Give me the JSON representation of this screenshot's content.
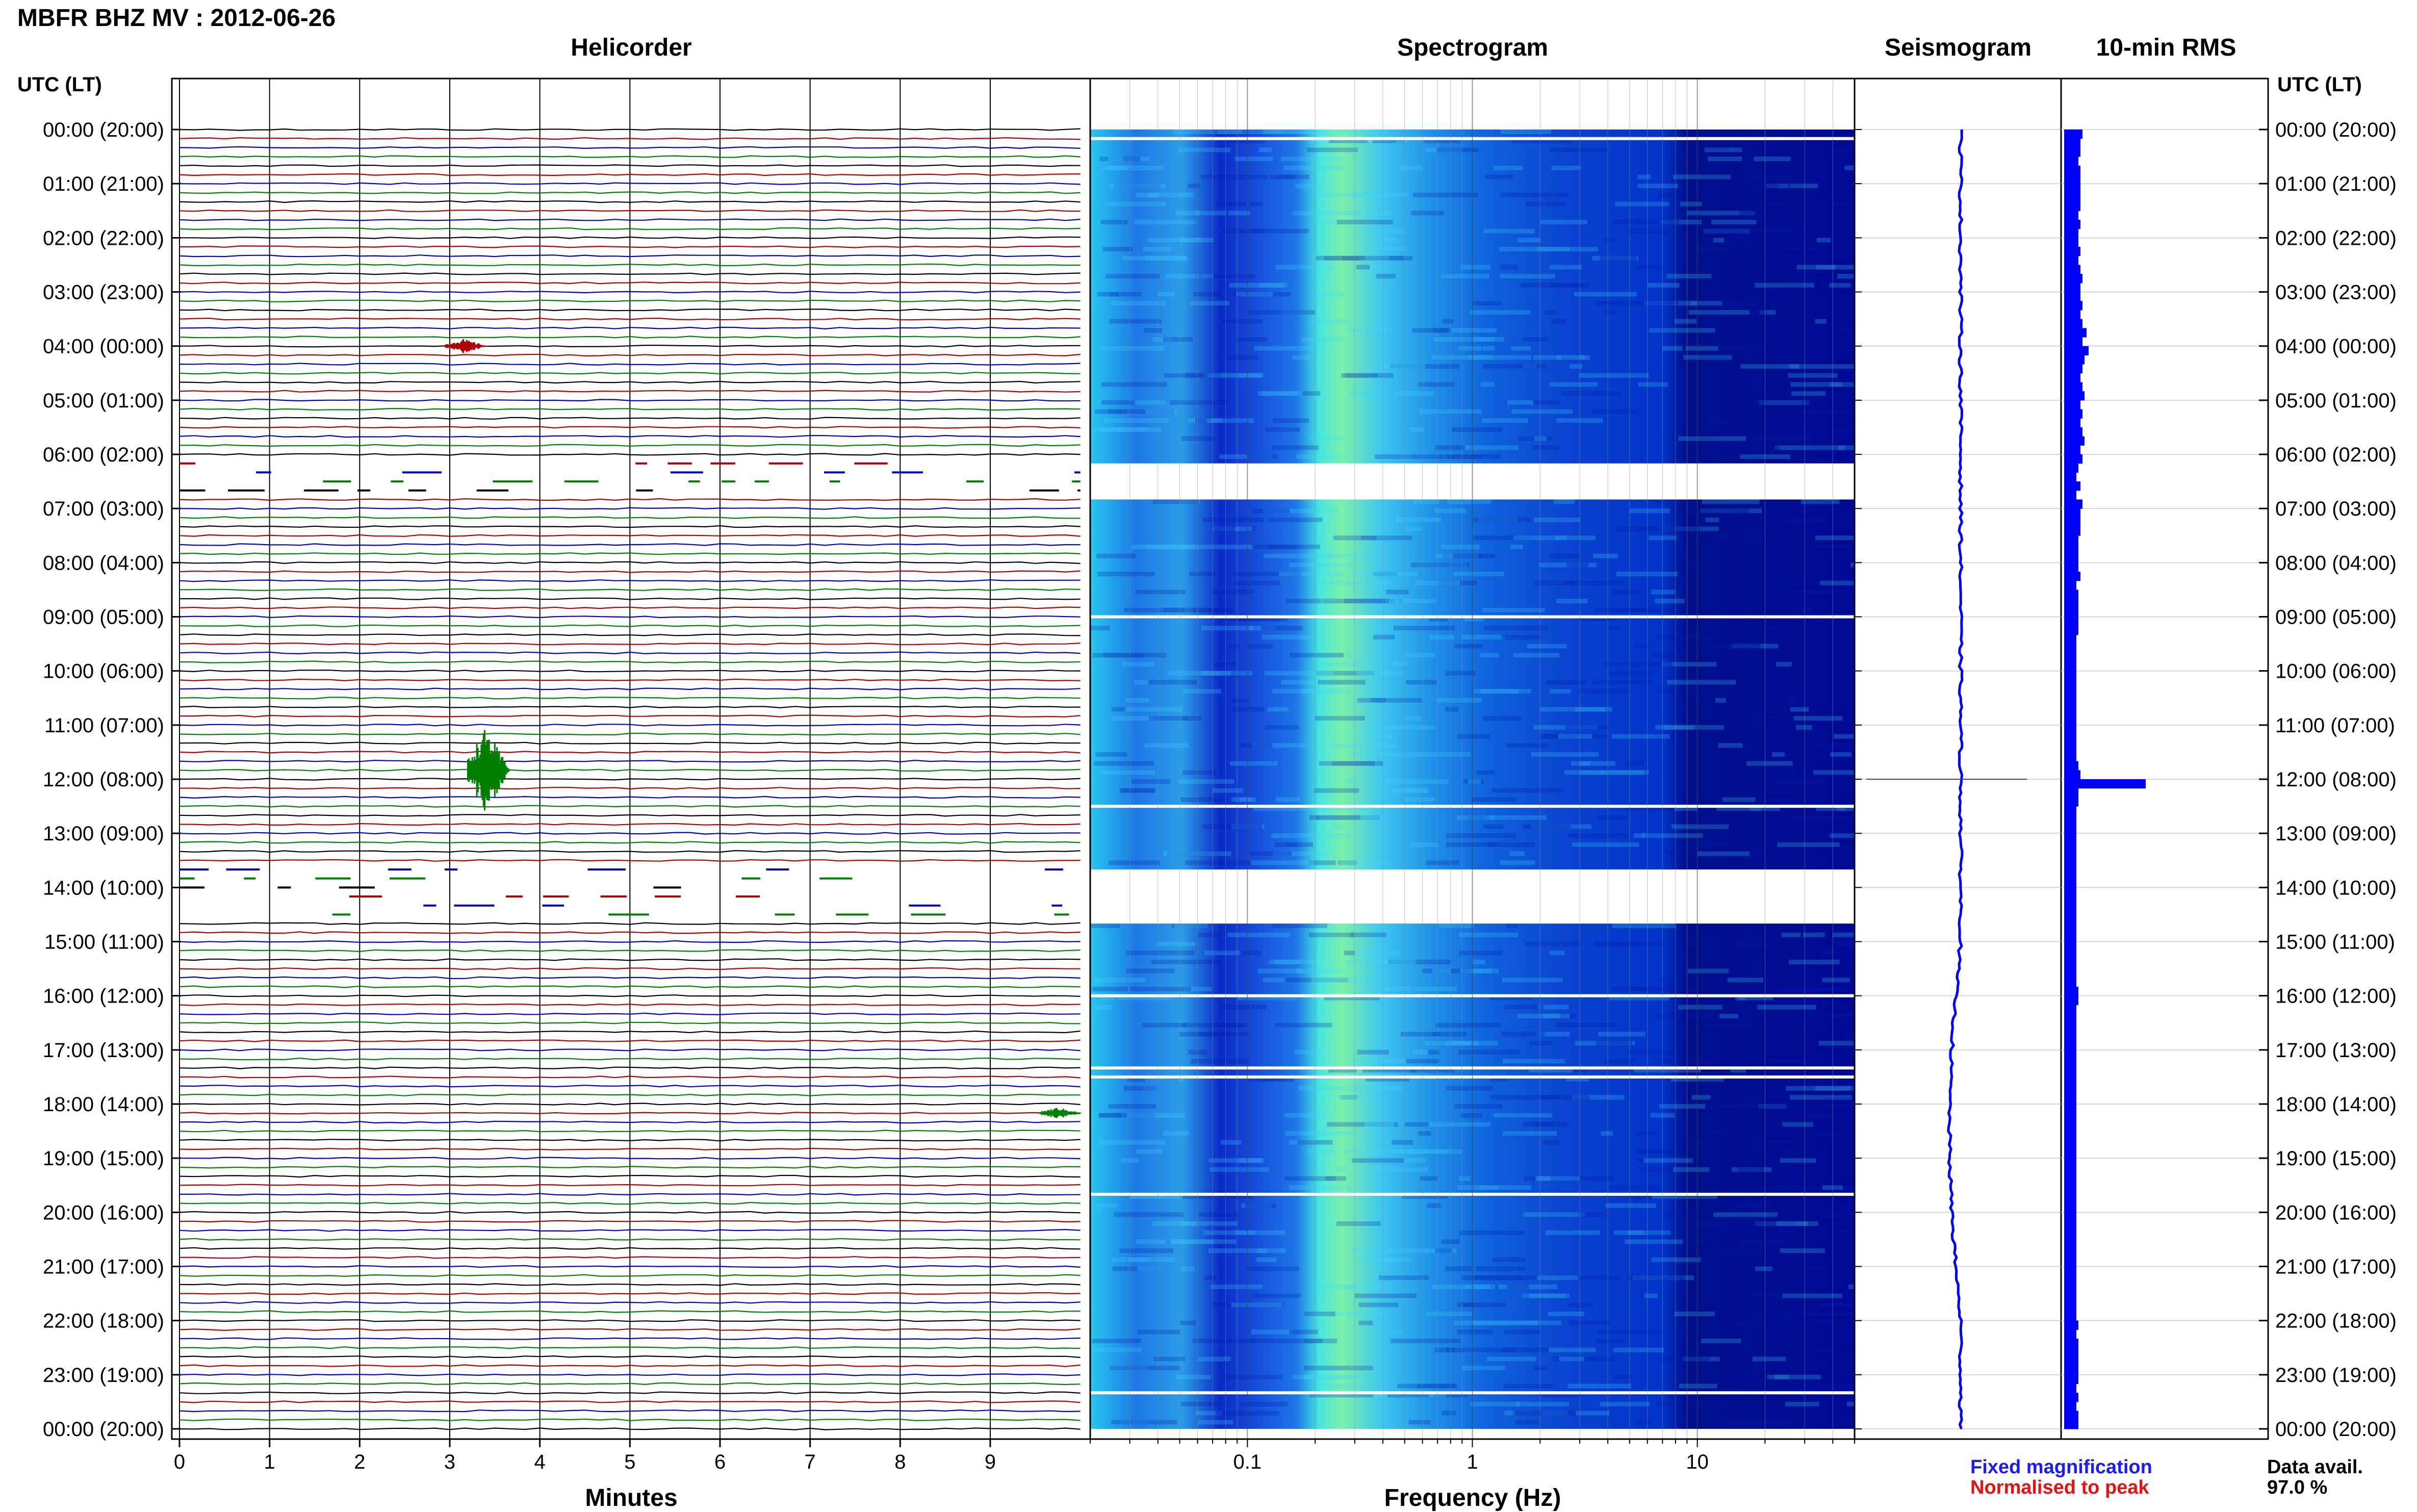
{
  "header": {
    "title": "MBFR BHZ MV : 2012-06-26",
    "panel_titles": {
      "helicorder": "Helicorder",
      "spectrogram": "Spectrogram",
      "seismogram": "Seismogram",
      "rms": "10-min RMS"
    },
    "utc_header_left": "UTC (LT)",
    "utc_header_right": "UTC (LT)"
  },
  "axes": {
    "minutes_title": "Minutes",
    "frequency_title": "Frequency (Hz)"
  },
  "legend": {
    "fixed": "Fixed magnification",
    "normalised": "Normalised to peak",
    "availability_label": "Data avail.",
    "availability_value": "97.0 %"
  },
  "colors": {
    "fixed": "#1a1aff",
    "normalised": "#e81010",
    "rms_bar": "#0000ff",
    "trace_palette": [
      "#000000",
      "#b00000",
      "#0000c8",
      "#007f00"
    ]
  },
  "chart_data": [
    {
      "type": "line",
      "name": "helicorder",
      "title": "Helicorder",
      "xlabel": "Minutes",
      "xlim": [
        0,
        10
      ],
      "x_ticks": [
        "0",
        "1",
        "2",
        "3",
        "4",
        "5",
        "6",
        "7",
        "8",
        "9"
      ],
      "y_tick_labels": [
        "00:00 (20:00)",
        "01:00 (21:00)",
        "02:00 (22:00)",
        "03:00 (23:00)",
        "04:00 (00:00)",
        "05:00 (01:00)",
        "06:00 (02:00)",
        "07:00 (03:00)",
        "08:00 (04:00)",
        "09:00 (05:00)",
        "10:00 (06:00)",
        "11:00 (07:00)",
        "12:00 (08:00)",
        "13:00 (09:00)",
        "14:00 (10:00)",
        "15:00 (11:00)",
        "16:00 (12:00)",
        "17:00 (13:00)",
        "18:00 (14:00)",
        "19:00 (15:00)",
        "20:00 (16:00)",
        "21:00 (17:00)",
        "22:00 (18:00)",
        "23:00 (19:00)",
        "00:00 (20:00)"
      ],
      "rows_per_hour": 6,
      "trace_minutes": 10,
      "grid": true,
      "events": [
        {
          "time": "04:00",
          "minute": 3.2,
          "color": "#b00000",
          "amplitude": 0.5
        },
        {
          "time": "11:50",
          "minute": 3.45,
          "color": "#007f00",
          "amplitude": 3.0
        },
        {
          "time": "18:10",
          "minute": 9.8,
          "color": "#007f00",
          "amplitude": 0.4
        }
      ],
      "gaps": [
        {
          "start": "06:10",
          "end": "06:50"
        },
        {
          "start": "13:40",
          "end": "14:40"
        }
      ]
    },
    {
      "type": "heatmap",
      "name": "spectrogram",
      "title": "Spectrogram",
      "xlabel": "Frequency (Hz)",
      "x_scale": "log",
      "xlim": [
        0.02,
        50
      ],
      "x_ticks": [
        "0.1",
        "1",
        "10"
      ],
      "colormap": [
        "#00008b",
        "#0000ff",
        "#0080ff",
        "#00ffff",
        "#80ff80"
      ],
      "peak_band_hz": [
        0.2,
        0.5
      ],
      "gaps": [
        {
          "start": "06:10",
          "end": "06:50"
        },
        {
          "start": "13:40",
          "end": "14:40"
        }
      ],
      "white_lines": [
        "00:10",
        "09:00",
        "12:30",
        "13:50",
        "16:00",
        "17:20",
        "17:30",
        "19:40",
        "23:20"
      ]
    },
    {
      "type": "line",
      "name": "seismogram",
      "title": "Seismogram",
      "grid": true,
      "spike_time": "12:00"
    },
    {
      "type": "bar",
      "name": "rms",
      "title": "10-min RMS",
      "orientation": "horizontal",
      "times": [
        "00:00",
        "00:10",
        "00:20",
        "00:30",
        "00:40",
        "00:50",
        "01:00",
        "01:10",
        "01:20",
        "01:30",
        "01:40",
        "01:50",
        "02:00",
        "02:10",
        "02:20",
        "02:30",
        "02:40",
        "02:50",
        "03:00",
        "03:10",
        "03:20",
        "03:30",
        "03:40",
        "03:50",
        "04:00",
        "04:10",
        "04:20",
        "04:30",
        "04:40",
        "04:50",
        "05:00",
        "05:10",
        "05:20",
        "05:30",
        "05:40",
        "05:50",
        "06:00",
        "06:10",
        "06:20",
        "06:30",
        "06:40",
        "06:50",
        "07:00",
        "07:10",
        "07:20",
        "07:30",
        "07:40",
        "07:50",
        "08:00",
        "08:10",
        "08:20",
        "08:30",
        "08:40",
        "08:50",
        "09:00",
        "09:10",
        "09:20",
        "09:30",
        "09:40",
        "09:50",
        "10:00",
        "10:10",
        "10:20",
        "10:30",
        "10:40",
        "10:50",
        "11:00",
        "11:10",
        "11:20",
        "11:30",
        "11:40",
        "11:50",
        "12:00",
        "12:10",
        "12:20",
        "12:30",
        "12:40",
        "12:50",
        "13:00",
        "13:10",
        "13:20",
        "13:30",
        "13:40",
        "13:50",
        "14:00",
        "14:10",
        "14:20",
        "14:30",
        "14:40",
        "14:50",
        "15:00",
        "15:10",
        "15:20",
        "15:30",
        "15:40",
        "15:50",
        "16:00",
        "16:10",
        "16:20",
        "16:30",
        "16:40",
        "16:50",
        "17:00",
        "17:10",
        "17:20",
        "17:30",
        "17:40",
        "17:50",
        "18:00",
        "18:10",
        "18:20",
        "18:30",
        "18:40",
        "18:50",
        "19:00",
        "19:10",
        "19:20",
        "19:30",
        "19:40",
        "19:50",
        "20:00",
        "20:10",
        "20:20",
        "20:30",
        "20:40",
        "20:50",
        "21:00",
        "21:10",
        "21:20",
        "21:30",
        "21:40",
        "21:50",
        "22:00",
        "22:10",
        "22:20",
        "22:30",
        "22:40",
        "22:50",
        "23:00",
        "23:10",
        "23:20",
        "23:30",
        "23:40",
        "23:50"
      ],
      "values": [
        0.09,
        0.08,
        0.08,
        0.07,
        0.08,
        0.08,
        0.08,
        0.08,
        0.08,
        0.07,
        0.08,
        0.07,
        0.07,
        0.08,
        0.07,
        0.08,
        0.09,
        0.08,
        0.08,
        0.09,
        0.08,
        0.09,
        0.11,
        0.09,
        0.12,
        0.1,
        0.09,
        0.08,
        0.09,
        0.1,
        0.08,
        0.09,
        0.08,
        0.09,
        0.1,
        0.08,
        0.09,
        0.07,
        0.06,
        0.08,
        0.06,
        0.09,
        0.08,
        0.08,
        0.08,
        0.07,
        0.07,
        0.07,
        0.07,
        0.08,
        0.06,
        0.07,
        0.07,
        0.07,
        0.07,
        0.07,
        0.06,
        0.06,
        0.06,
        0.06,
        0.06,
        0.06,
        0.06,
        0.06,
        0.06,
        0.06,
        0.06,
        0.06,
        0.06,
        0.06,
        0.07,
        0.08,
        0.4,
        0.07,
        0.07,
        0.06,
        0.06,
        0.06,
        0.06,
        0.06,
        0.06,
        0.06,
        0.06,
        0.06,
        0.06,
        0.06,
        0.06,
        0.06,
        0.06,
        0.06,
        0.06,
        0.06,
        0.06,
        0.06,
        0.06,
        0.07,
        0.07,
        0.06,
        0.06,
        0.06,
        0.06,
        0.06,
        0.06,
        0.06,
        0.06,
        0.06,
        0.06,
        0.06,
        0.06,
        0.06,
        0.06,
        0.06,
        0.06,
        0.06,
        0.06,
        0.06,
        0.06,
        0.06,
        0.06,
        0.06,
        0.06,
        0.06,
        0.06,
        0.06,
        0.06,
        0.06,
        0.06,
        0.06,
        0.06,
        0.06,
        0.06,
        0.06,
        0.07,
        0.06,
        0.07,
        0.07,
        0.07,
        0.07,
        0.07,
        0.06,
        0.07,
        0.06,
        0.07,
        0.07
      ]
    }
  ]
}
